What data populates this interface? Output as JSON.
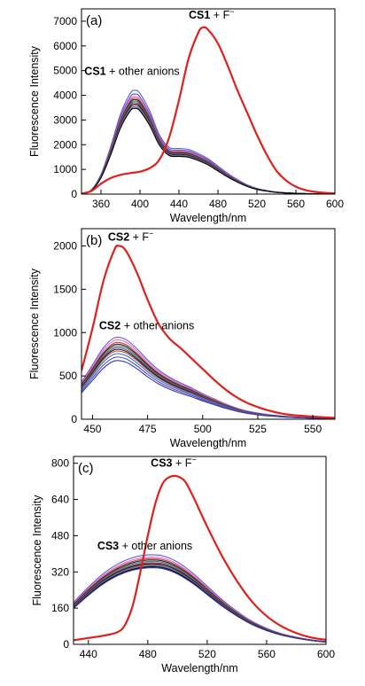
{
  "chart_data": [
    {
      "type": "line",
      "panel_label": "(a)",
      "xlabel": "Wavelength/nm",
      "ylabel": "Fluorescence Intensity",
      "xlim": [
        340,
        600
      ],
      "ylim": [
        0,
        7500
      ],
      "xticks": [
        360,
        400,
        440,
        480,
        520,
        560,
        600
      ],
      "yticks": [
        0,
        1000,
        2000,
        3000,
        4000,
        5000,
        6000,
        7000
      ],
      "annotations": [
        {
          "bold": "CS1",
          "rest": " + F",
          "sup": "−",
          "x": 450,
          "y": 7100
        },
        {
          "bold": "CS1",
          "rest": " + other anions",
          "sup": "",
          "x": 343,
          "y": 4830
        }
      ],
      "highlight": {
        "color": "#e0201b",
        "x": [
          340,
          350,
          360,
          370,
          380,
          390,
          400,
          410,
          420,
          430,
          440,
          450,
          460,
          465,
          470,
          480,
          490,
          500,
          510,
          520,
          530,
          540,
          550,
          560,
          570,
          580,
          590,
          600
        ],
        "y": [
          20,
          120,
          420,
          650,
          780,
          850,
          910,
          1050,
          1400,
          2300,
          3800,
          5500,
          6550,
          6750,
          6650,
          6100,
          5200,
          4200,
          3300,
          2400,
          1600,
          950,
          550,
          300,
          160,
          90,
          50,
          30
        ]
      },
      "base_shape": {
        "x": [
          340,
          350,
          360,
          370,
          380,
          390,
          395,
          400,
          410,
          420,
          430,
          440,
          450,
          460,
          470,
          480,
          490,
          500,
          510,
          520,
          530,
          540,
          560,
          580,
          600
        ],
        "y": [
          0.0,
          0.04,
          0.19,
          0.46,
          0.77,
          0.97,
          1.0,
          0.97,
          0.8,
          0.57,
          0.45,
          0.44,
          0.43,
          0.39,
          0.34,
          0.27,
          0.2,
          0.14,
          0.09,
          0.055,
          0.035,
          0.02,
          0.008,
          0.003,
          0.0
        ]
      },
      "series": [
        {
          "color": "#5b5bd6",
          "peak": 4200
        },
        {
          "color": "#4e4ec8",
          "peak": 4050
        },
        {
          "color": "#e06ad8",
          "peak": 3950
        },
        {
          "color": "#d23a3a",
          "peak": 3880
        },
        {
          "color": "#222222",
          "peak": 3820
        },
        {
          "color": "#3a8a5a",
          "peak": 3760
        },
        {
          "color": "#7a3aa0",
          "peak": 3700
        },
        {
          "color": "#111111",
          "peak": 3640
        },
        {
          "color": "#c06030",
          "peak": 3580
        },
        {
          "color": "#2f6fd0",
          "peak": 3520
        },
        {
          "color": "#000000",
          "peak": 3470
        }
      ]
    },
    {
      "type": "line",
      "panel_label": "(b)",
      "xlabel": "Wavelength/nm",
      "ylabel": "Fluorescence Intensity",
      "xlim": [
        445,
        560
      ],
      "ylim": [
        0,
        2200
      ],
      "xticks": [
        450,
        475,
        500,
        525,
        550
      ],
      "yticks": [
        0,
        500,
        1000,
        1500,
        2000
      ],
      "annotations": [
        {
          "bold": "CS2",
          "rest": " + F",
          "sup": "−",
          "x": 457,
          "y": 2060
        },
        {
          "bold": "CS2",
          "rest": " + other anions",
          "sup": "",
          "x": 453,
          "y": 1040
        }
      ],
      "highlight": {
        "color": "#e0201b",
        "x": [
          445,
          450,
          455,
          460,
          462,
          465,
          470,
          475,
          480,
          485,
          490,
          495,
          500,
          505,
          510,
          515,
          520,
          525,
          530,
          535,
          540,
          545,
          550,
          555,
          560
        ],
        "y": [
          560,
          1050,
          1600,
          1960,
          2000,
          1950,
          1700,
          1380,
          1100,
          930,
          820,
          700,
          580,
          460,
          350,
          260,
          190,
          140,
          100,
          70,
          50,
          40,
          30,
          22,
          15
        ]
      },
      "base_shape": {
        "x": [
          445,
          450,
          455,
          460,
          465,
          470,
          475,
          480,
          485,
          490,
          495,
          500,
          505,
          510,
          515,
          520,
          525,
          530,
          540,
          550,
          560
        ],
        "y": [
          0.45,
          0.66,
          0.87,
          0.99,
          0.97,
          0.86,
          0.72,
          0.6,
          0.51,
          0.44,
          0.38,
          0.31,
          0.25,
          0.19,
          0.14,
          0.1,
          0.075,
          0.055,
          0.03,
          0.018,
          0.01
        ]
      },
      "series": [
        {
          "color": "#5b5bd6",
          "peak": 950
        },
        {
          "color": "#e06ad8",
          "peak": 920
        },
        {
          "color": "#d23a3a",
          "peak": 890
        },
        {
          "color": "#222222",
          "peak": 870
        },
        {
          "color": "#3a8a5a",
          "peak": 850
        },
        {
          "color": "#7a3aa0",
          "peak": 830
        },
        {
          "color": "#111111",
          "peak": 810
        },
        {
          "color": "#c06030",
          "peak": 790
        },
        {
          "color": "#2f6fd0",
          "peak": 760
        },
        {
          "color": "#4e4ec8",
          "peak": 720
        },
        {
          "color": "#3535b0",
          "peak": 680
        }
      ]
    },
    {
      "type": "line",
      "panel_label": "(c)",
      "xlabel": "Wavelength/nm",
      "ylabel": "Fluorescence Intensity",
      "xlim": [
        430,
        600
      ],
      "ylim": [
        0,
        830
      ],
      "xticks": [
        440,
        480,
        520,
        560,
        600
      ],
      "yticks": [
        0,
        160,
        320,
        480,
        640,
        800
      ],
      "annotations": [
        {
          "bold": "CS3",
          "rest": " + F",
          "sup": "−",
          "x": 482,
          "y": 785
        },
        {
          "bold": "CS3",
          "rest": " + other anions",
          "sup": "",
          "x": 446,
          "y": 418
        }
      ],
      "highlight": {
        "color": "#e0201b",
        "x": [
          430,
          440,
          450,
          460,
          465,
          470,
          475,
          480,
          485,
          490,
          495,
          500,
          505,
          510,
          515,
          520,
          530,
          540,
          550,
          560,
          570,
          580,
          590,
          600
        ],
        "y": [
          18,
          28,
          38,
          55,
          90,
          175,
          320,
          480,
          620,
          710,
          740,
          742,
          720,
          660,
          590,
          520,
          390,
          280,
          190,
          125,
          80,
          50,
          30,
          20
        ]
      },
      "base_shape": {
        "x": [
          430,
          440,
          450,
          460,
          470,
          480,
          490,
          500,
          510,
          520,
          530,
          540,
          550,
          560,
          570,
          580,
          590,
          600
        ],
        "y": [
          0.47,
          0.64,
          0.79,
          0.9,
          0.97,
          1.0,
          0.99,
          0.92,
          0.8,
          0.65,
          0.5,
          0.37,
          0.26,
          0.18,
          0.12,
          0.08,
          0.05,
          0.03
        ]
      },
      "series": [
        {
          "color": "#5b5bd6",
          "peak": 395
        },
        {
          "color": "#e06ad8",
          "peak": 385
        },
        {
          "color": "#d23a3a",
          "peak": 378
        },
        {
          "color": "#222222",
          "peak": 372
        },
        {
          "color": "#3a8a5a",
          "peak": 366
        },
        {
          "color": "#7a3aa0",
          "peak": 360
        },
        {
          "color": "#111111",
          "peak": 355
        },
        {
          "color": "#c06030",
          "peak": 350
        },
        {
          "color": "#2f6fd0",
          "peak": 346
        },
        {
          "color": "#000000",
          "peak": 342
        },
        {
          "color": "#3535b0",
          "peak": 338
        }
      ]
    }
  ]
}
